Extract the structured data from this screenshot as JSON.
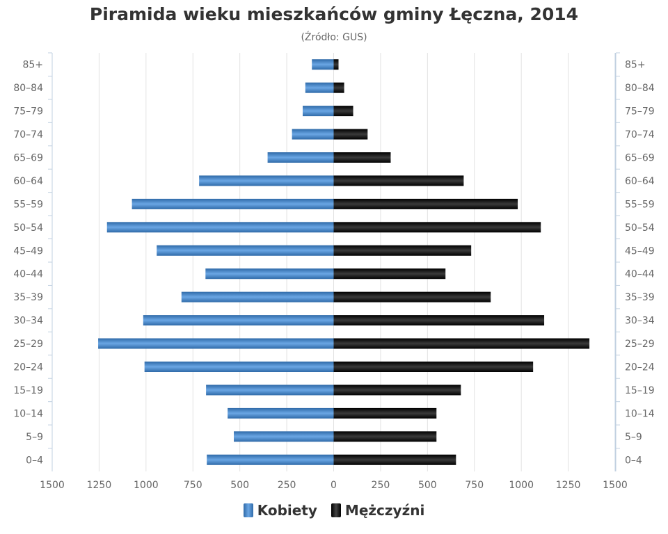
{
  "chart_data": {
    "type": "bar",
    "orientation": "horizontal-pyramid",
    "title": "Piramida wieku mieszkańców gminy Łęczna, 2014",
    "subtitle": "(Źródło: GUS)",
    "categories": [
      "85+",
      "80–84",
      "75–79",
      "70–74",
      "65–69",
      "60–64",
      "55–59",
      "50–54",
      "45–49",
      "40–44",
      "35–39",
      "30–34",
      "25–29",
      "20–24",
      "15–19",
      "10–14",
      "5–9",
      "0–4"
    ],
    "xlim": [
      -1500,
      1500
    ],
    "x_ticks": [
      1500,
      1250,
      1000,
      750,
      500,
      250,
      0,
      250,
      500,
      750,
      1000,
      1250,
      1500
    ],
    "grid": true,
    "legend_position": "bottom",
    "series": [
      {
        "name": "Kobiety",
        "color": "#4a86c8",
        "side": "left",
        "values": [
          116,
          151,
          165,
          222,
          352,
          717,
          1075,
          1208,
          943,
          683,
          811,
          1015,
          1255,
          1008,
          680,
          565,
          532,
          676
        ]
      },
      {
        "name": "Mężczyźni",
        "color": "#111111",
        "side": "right",
        "values": [
          26,
          56,
          104,
          181,
          304,
          693,
          981,
          1104,
          733,
          596,
          837,
          1122,
          1363,
          1063,
          678,
          548,
          548,
          652
        ]
      }
    ]
  }
}
